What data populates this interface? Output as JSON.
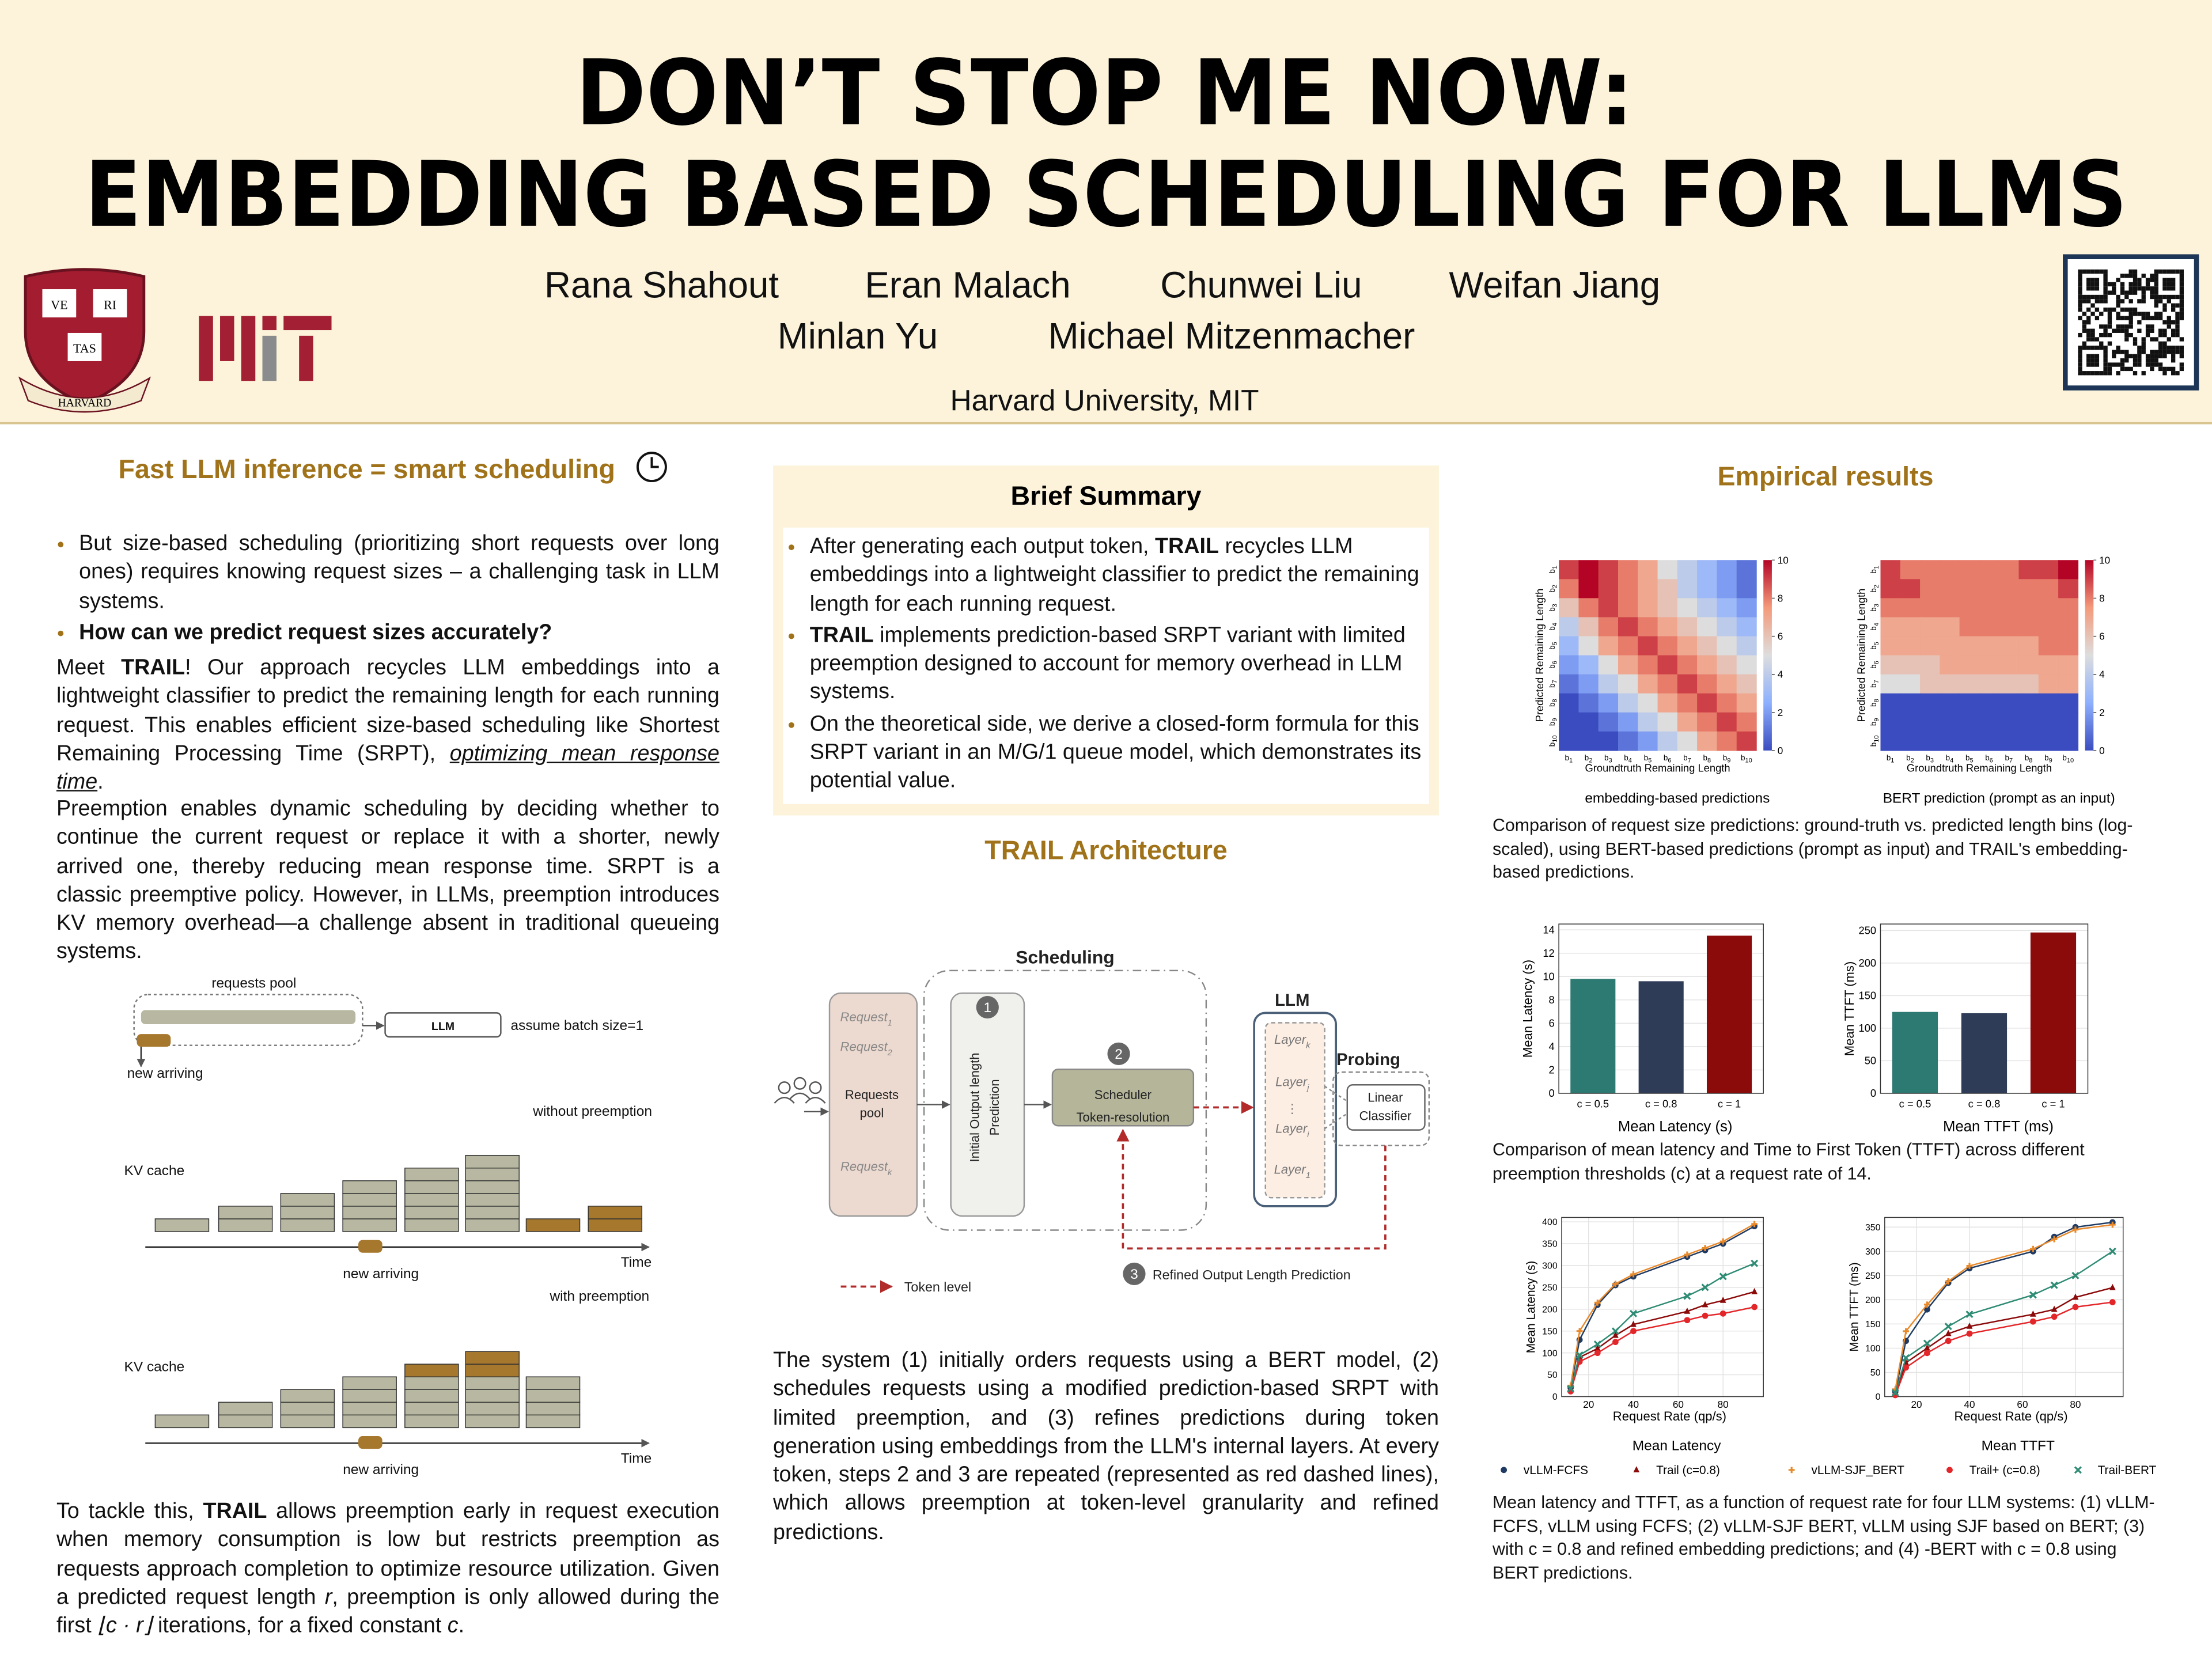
{
  "header": {
    "title_line1": "DON’T STOP ME NOW:",
    "title_line2": "EMBEDDING BASED SCHEDULING FOR LLMS",
    "authors_line1": [
      "Rana Shahout",
      "Eran Malach",
      "Chunwei Liu",
      "Weifan Jiang"
    ],
    "authors_line2": [
      "Minlan Yu",
      "Michael Mitzenmacher"
    ],
    "affiliation": "Harvard University, MIT",
    "shield": [
      "VE",
      "RI",
      "TAS",
      "HARVARD"
    ]
  },
  "left": {
    "heading": "Fast LLM inference = smart scheduling",
    "bullets": [
      "But size-based scheduling (prioritizing short requests over long ones) requires knowing request sizes – a challenging task in LLM systems.",
      "How can we predict request sizes accurately?"
    ],
    "intro": [
      "Meet ",
      "TRAIL",
      "! Our approach recycles LLM embeddings into a lightweight classifier to predict the remaining length for each running request.  This enables efficient size-based scheduling like Shortest Remaining Processing Time (SRPT), ",
      "optimizing mean response time",
      "."
    ],
    "preemption": "Preemption enables dynamic scheduling by deciding whether to continue the current request or replace it with a shorter, newly arrived one, thereby reducing mean response time.  SRPT is a classic preemptive policy.  However, in LLMs, preemption introduces KV memory overhead—a challenge absent in traditional queueing systems.",
    "figure": {
      "pool": "requests pool",
      "llm": "LLM",
      "batch": "assume batch size=1",
      "new_arriving": "new arriving",
      "panels": [
        {
          "title": "without preemption",
          "kv": "KV cache",
          "time": "Time",
          "arriving": "new arriving"
        },
        {
          "title": "with preemption",
          "kv": "KV cache",
          "time": "Time",
          "arriving": "new arriving"
        }
      ]
    },
    "closing": [
      "To tackle this, ",
      "TRAIL",
      " allows preemption early in request execution when memory consumption is low but restricts preemption as requests approach completion to optimize resource utilization.  Given a predicted request length ",
      "r",
      ", preemption is only allowed during the first ",
      "⌊c · r⌋",
      " iterations, for a fixed constant ",
      "c",
      "."
    ]
  },
  "middle": {
    "summary": {
      "title": "Brief Summary",
      "bullets": [
        [
          "After generating each output token, ",
          "TRAIL",
          " recycles LLM embeddings into a lightweight classifier to predict the remaining length for each running request."
        ],
        [
          "TRAIL",
          " implements prediction-based SRPT variant with limited preemption designed to account for memory overhead in LLM systems."
        ],
        [
          "On the theoretical side, we derive a closed-form formula for this SRPT variant in an M/G/1 queue model, which demonstrates its potential value."
        ]
      ]
    },
    "architecture": {
      "title": "TRAIL Architecture",
      "scheduling": "Scheduling",
      "requests": [
        [
          "Request",
          "1"
        ],
        [
          "Request",
          "2"
        ],
        [
          "Request",
          "k"
        ]
      ],
      "pool": [
        "Requests",
        "pool"
      ],
      "initial": [
        "Initial Output length",
        "Prediction"
      ],
      "steps": [
        "1",
        "2",
        "3"
      ],
      "scheduler": [
        "Scheduler",
        "Token-resolution"
      ],
      "llm": "LLM",
      "layers": [
        [
          "Layer",
          "k"
        ],
        [
          "Layer",
          "j"
        ],
        [
          "Layer",
          "i"
        ],
        [
          "Layer",
          "1"
        ]
      ],
      "dots": "⋮",
      "probing": "Probing",
      "classifier": [
        "Linear",
        "Classifier"
      ],
      "refined": "Refined Output Length Prediction",
      "token_level": "Token level",
      "caption": "The system (1) initially orders requests using a BERT model, (2) schedules requests using a modified prediction-based SRPT with limited preemption, and (3) refines predictions during token generation using embeddings from the LLM's internal layers.  At every token, steps 2 and 3 are repeated (represented as red dashed lines), which allows preemption at token-level granularity and refined predictions."
    }
  },
  "right": {
    "title": "Empirical results",
    "heat_caption": "Comparison of request size predictions: ground-truth vs. predicted length bins (log-scaled), using BERT-based predictions (prompt as input) and TRAIL's embedding-based predictions.",
    "bar_caption": "Comparison of mean latency and Time to First Token (TTFT) across different preemption thresholds (c) at a request rate of 14.",
    "line_caption": "Mean latency and TTFT, as a function of request rate for four LLM systems: (1) vLLM-FCFS, vLLM using FCFS; (2) vLLM-SJF BERT, vLLM using SJF based on BERT; (3)  with c = 0.8 and refined embedding predictions; and (4) -BERT with c = 0.8 using BERT predictions."
  },
  "chart_data": [
    {
      "type": "heatmap",
      "caption": "embedding-based predictions",
      "xlabel": "Groundtruth Remaining Length",
      "ylabel": "Predicted Remaining Length",
      "colormap": "coolwarm",
      "clim": [
        0,
        10
      ],
      "cticks": [
        0,
        2,
        4,
        6,
        8,
        10
      ],
      "xticklabels": [
        [
          "b",
          "1"
        ],
        [
          "b",
          "2"
        ],
        [
          "b",
          "3"
        ],
        [
          "b",
          "4"
        ],
        [
          "b",
          "5"
        ],
        [
          "b",
          "6"
        ],
        [
          "b",
          "7"
        ],
        [
          "b",
          "8"
        ],
        [
          "b",
          "9"
        ],
        [
          "b",
          "10"
        ]
      ],
      "yticklabels": [
        [
          "b",
          "1"
        ],
        [
          "b",
          "2"
        ],
        [
          "b",
          "3"
        ],
        [
          "b",
          "4"
        ],
        [
          "b",
          "5"
        ],
        [
          "b",
          "6"
        ],
        [
          "b",
          "7"
        ],
        [
          "b",
          "8"
        ],
        [
          "b",
          "9"
        ],
        [
          "b",
          "10"
        ]
      ],
      "values": [
        [
          9,
          10,
          9,
          8,
          7,
          5,
          4,
          3,
          2,
          1
        ],
        [
          8,
          10,
          9,
          8,
          7,
          6,
          4,
          3,
          2,
          1
        ],
        [
          6,
          8,
          9,
          8,
          7,
          6,
          5,
          4,
          3,
          2
        ],
        [
          4,
          6,
          8,
          9,
          8,
          7,
          6,
          5,
          4,
          3
        ],
        [
          3,
          5,
          7,
          8,
          9,
          8,
          7,
          6,
          5,
          4
        ],
        [
          2,
          3,
          5,
          7,
          8,
          9,
          8,
          7,
          6,
          5
        ],
        [
          1,
          2,
          4,
          5,
          7,
          8,
          9,
          8,
          7,
          6
        ],
        [
          0,
          1,
          2,
          4,
          5,
          7,
          8,
          9,
          8,
          7
        ],
        [
          0,
          0,
          1,
          2,
          4,
          5,
          7,
          8,
          9,
          8
        ],
        [
          0,
          0,
          0,
          1,
          2,
          4,
          5,
          7,
          8,
          9
        ]
      ]
    },
    {
      "type": "heatmap",
      "caption": "BERT prediction (prompt as an input)",
      "xlabel": "Groundtruth Remaining Length",
      "ylabel": "Predicted Remaining Length",
      "colormap": "coolwarm",
      "clim": [
        0,
        10
      ],
      "cticks": [
        0,
        2,
        4,
        6,
        8,
        10
      ],
      "xticklabels": [
        [
          "b",
          "1"
        ],
        [
          "b",
          "2"
        ],
        [
          "b",
          "3"
        ],
        [
          "b",
          "4"
        ],
        [
          "b",
          "5"
        ],
        [
          "b",
          "6"
        ],
        [
          "b",
          "7"
        ],
        [
          "b",
          "8"
        ],
        [
          "b",
          "9"
        ],
        [
          "b",
          "10"
        ]
      ],
      "yticklabels": [
        [
          "b",
          "1"
        ],
        [
          "b",
          "2"
        ],
        [
          "b",
          "3"
        ],
        [
          "b",
          "4"
        ],
        [
          "b",
          "5"
        ],
        [
          "b",
          "6"
        ],
        [
          "b",
          "7"
        ],
        [
          "b",
          "8"
        ],
        [
          "b",
          "9"
        ],
        [
          "b",
          "10"
        ]
      ],
      "values": [
        [
          9,
          8,
          8,
          8,
          8,
          8,
          8,
          9,
          9,
          10
        ],
        [
          9,
          9,
          8,
          8,
          8,
          8,
          8,
          8,
          8,
          9
        ],
        [
          8,
          8,
          8,
          8,
          8,
          8,
          8,
          8,
          8,
          8
        ],
        [
          7,
          7,
          7,
          7,
          8,
          8,
          8,
          8,
          8,
          8
        ],
        [
          7,
          7,
          7,
          7,
          7,
          7,
          7,
          7,
          8,
          8
        ],
        [
          6,
          6,
          6,
          7,
          7,
          7,
          7,
          7,
          7,
          7
        ],
        [
          5,
          5,
          6,
          6,
          6,
          6,
          6,
          6,
          7,
          7
        ],
        [
          0,
          0,
          0,
          0,
          0,
          0,
          0,
          0,
          0,
          0
        ],
        [
          0,
          0,
          0,
          0,
          0,
          0,
          0,
          0,
          0,
          0
        ],
        [
          0,
          0,
          0,
          0,
          0,
          0,
          0,
          0,
          0,
          0
        ]
      ]
    },
    {
      "type": "bar",
      "xlabel": "Mean Latency (s)",
      "ylabel": "Mean Latency (s)",
      "categories": [
        "c = 0.5",
        "c = 0.8",
        "c = 1"
      ],
      "values": [
        9.8,
        9.6,
        13.5
      ],
      "colors": [
        "#2d7a72",
        "#2e3c58",
        "#8b0a0a"
      ],
      "ylim": [
        0,
        14.5
      ],
      "yticks": [
        0,
        2,
        4,
        6,
        8,
        10,
        12,
        14
      ],
      "grid": true
    },
    {
      "type": "bar",
      "xlabel": "Mean TTFT (ms)",
      "ylabel": "Mean TTFT (ms)",
      "categories": [
        "c = 0.5",
        "c = 0.8",
        "c = 1"
      ],
      "values": [
        125,
        123,
        247
      ],
      "colors": [
        "#2d7a72",
        "#2e3c58",
        "#8b0a0a"
      ],
      "ylim": [
        0,
        260
      ],
      "yticks": [
        0,
        50,
        100,
        150,
        200,
        250
      ],
      "grid": true
    },
    {
      "type": "line",
      "caption": "Mean Latency",
      "xlabel": "Request Rate (qp/s)",
      "ylabel": "Mean Latency (s)",
      "x": [
        12,
        16,
        24,
        32,
        40,
        64,
        72,
        80,
        94
      ],
      "xlim": [
        8,
        98
      ],
      "xticks": [
        20,
        40,
        60,
        80
      ],
      "ylim": [
        0,
        410
      ],
      "yticks": [
        0,
        50,
        100,
        150,
        200,
        250,
        300,
        350,
        400
      ],
      "grid": true,
      "series": [
        {
          "name": "vLLM-FCFS",
          "color": "#1f3b63",
          "marker": "circle",
          "values": [
            20,
            130,
            210,
            255,
            275,
            320,
            335,
            350,
            390
          ]
        },
        {
          "name": "Trail (c=0.8)",
          "color": "#8b0a0a",
          "marker": "triangle",
          "values": [
            15,
            90,
            110,
            140,
            165,
            195,
            210,
            220,
            240
          ]
        },
        {
          "name": "vLLM-SJF_BERT",
          "color": "#e8892b",
          "marker": "plus",
          "values": [
            25,
            150,
            215,
            258,
            280,
            325,
            340,
            355,
            395
          ]
        },
        {
          "name": "Trail+ (c=0.8)",
          "color": "#e3262a",
          "marker": "circle",
          "values": [
            12,
            80,
            100,
            125,
            150,
            175,
            185,
            190,
            205
          ]
        },
        {
          "name": "Trail-BERT",
          "color": "#2e8b74",
          "marker": "x",
          "values": [
            18,
            95,
            120,
            150,
            190,
            230,
            250,
            275,
            305
          ]
        }
      ]
    },
    {
      "type": "line",
      "caption": "Mean TTFT",
      "xlabel": "Request Rate (qp/s)",
      "ylabel": "Mean TTFT (ms)",
      "x": [
        12,
        16,
        24,
        32,
        40,
        64,
        72,
        80,
        94
      ],
      "xlim": [
        8,
        98
      ],
      "xticks": [
        20,
        40,
        60,
        80
      ],
      "ylim": [
        0,
        370
      ],
      "yticks": [
        0,
        50,
        100,
        150,
        200,
        250,
        300,
        350
      ],
      "grid": true,
      "series": [
        {
          "color": "#1f3b63",
          "marker": "circle",
          "values": [
            10,
            115,
            180,
            235,
            265,
            300,
            330,
            350,
            360
          ]
        },
        {
          "color": "#8b0a0a",
          "marker": "triangle",
          "values": [
            5,
            70,
            100,
            130,
            145,
            170,
            180,
            205,
            225
          ]
        },
        {
          "color": "#e8892b",
          "marker": "plus",
          "values": [
            15,
            135,
            190,
            238,
            270,
            305,
            325,
            345,
            355
          ]
        },
        {
          "color": "#e3262a",
          "marker": "circle",
          "values": [
            3,
            60,
            90,
            115,
            130,
            155,
            165,
            185,
            195
          ]
        },
        {
          "color": "#2e8b74",
          "marker": "x",
          "values": [
            8,
            80,
            110,
            145,
            170,
            210,
            230,
            250,
            300
          ]
        }
      ]
    }
  ]
}
